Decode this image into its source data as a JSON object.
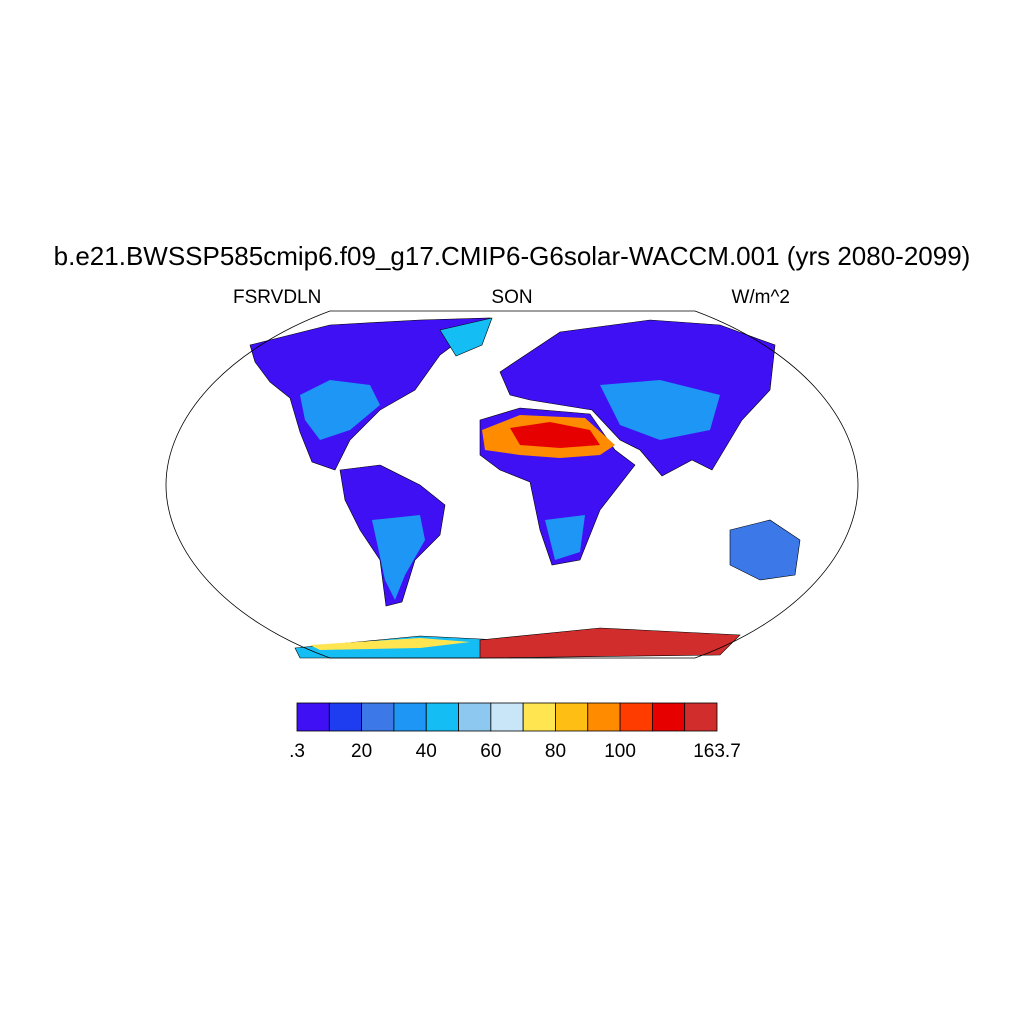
{
  "title": "b.e21.BWSSP585cmip6.f09_g17.CMIP6-G6solar-WACCM.001 (yrs 2080-2099)",
  "subtitle": {
    "left": "FSRVDLN",
    "center": "SON",
    "right": "W/m^2"
  },
  "colorbar": {
    "colors": [
      "#4010f5",
      "#1e3cf0",
      "#3c78e8",
      "#1e96f5",
      "#14bef5",
      "#8cc8f0",
      "#c8e6f8",
      "#ffe650",
      "#ffbe14",
      "#ff8c00",
      "#ff3c00",
      "#e60000",
      "#d22d2d"
    ],
    "labels": [
      ".3",
      null,
      "20",
      null,
      "40",
      null,
      "60",
      null,
      "80",
      null,
      "100",
      null,
      null,
      "163.7"
    ]
  }
}
